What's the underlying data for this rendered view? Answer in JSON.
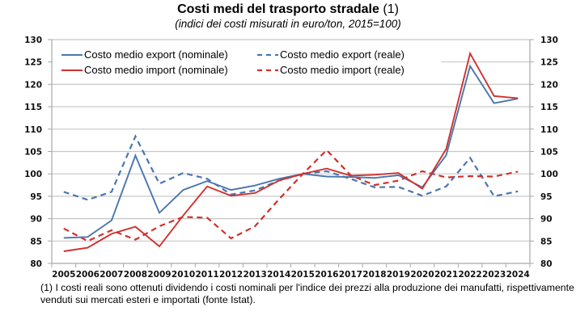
{
  "title": {
    "main": "Costi medi del trasporto stradale",
    "note_ref": "(1)",
    "subtitle": "(indici dei costi misurati in euro/ton, 2015=100)"
  },
  "footnote": "(1) I costi reali sono ottenuti dividendo i costi nominali per l'indice dei prezzi alla produzione dei manufatti, rispettivamente venduti sui mercati esteri e importati (fonte Istat).",
  "chart_data": {
    "type": "line",
    "title": "Costi medi del trasporto stradale (1)",
    "subtitle": "(indici dei costi misurati in euro/ton, 2015=100)",
    "xlabel": "",
    "ylabel": "",
    "categories": [
      "2005",
      "2006",
      "2007",
      "2008",
      "2009",
      "2010",
      "2011",
      "2012",
      "2013",
      "2014",
      "2015",
      "2016",
      "2017",
      "2018",
      "2019",
      "2020",
      "2021",
      "2022",
      "2023",
      "2024"
    ],
    "ylim": [
      80,
      130
    ],
    "yticks": [
      80,
      85,
      90,
      95,
      100,
      105,
      110,
      115,
      120,
      125,
      130
    ],
    "secondary_yaxis": true,
    "grid": true,
    "legend_position": "top-left",
    "series": [
      {
        "name": "Costo medio export (nominale)",
        "color": "#4a76ad",
        "style": "solid",
        "values": [
          85.7,
          85.9,
          89.6,
          104.1,
          91.3,
          96.4,
          98.4,
          96.4,
          97.4,
          98.9,
          100.0,
          99.4,
          99.3,
          99.1,
          99.7,
          97.0,
          104.2,
          124.1,
          115.8,
          116.8
        ]
      },
      {
        "name": "Costo medio export (reale)",
        "color": "#4a76ad",
        "style": "dashed",
        "values": [
          96.0,
          94.2,
          96.0,
          108.4,
          97.8,
          100.2,
          98.9,
          95.4,
          96.3,
          98.5,
          100.0,
          100.6,
          98.9,
          97.0,
          97.1,
          95.1,
          97.2,
          103.6,
          95.0,
          96.1
        ]
      },
      {
        "name": "Costo medio import (nominale)",
        "color": "#d0312d",
        "style": "solid",
        "values": [
          82.7,
          83.5,
          86.6,
          88.2,
          83.8,
          90.7,
          97.2,
          95.1,
          95.7,
          98.5,
          100.0,
          101.2,
          99.6,
          99.8,
          100.2,
          96.7,
          105.6,
          126.9,
          117.4,
          116.9
        ]
      },
      {
        "name": "Costo medio import (reale)",
        "color": "#d0312d",
        "style": "dashed",
        "values": [
          87.8,
          85.0,
          87.4,
          85.3,
          88.3,
          90.4,
          90.2,
          85.6,
          88.3,
          94.3,
          100.0,
          105.3,
          99.7,
          97.5,
          98.5,
          100.6,
          99.2,
          99.5,
          99.4,
          100.5
        ]
      }
    ]
  }
}
